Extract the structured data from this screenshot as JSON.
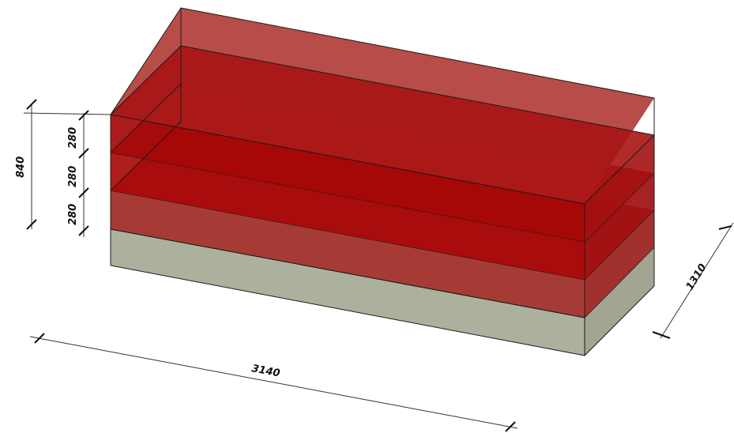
{
  "dimensions": {
    "length": "3140",
    "width": "1310",
    "total_height": "840",
    "layer_heights": [
      "280",
      "280",
      "280"
    ]
  },
  "colors": {
    "top_box_face": "#b01818",
    "mid_box_face": "#a00f0f",
    "low_box_face": "#9a1414",
    "base_face": "#a8ad98",
    "edge": "#1a1a1a"
  }
}
